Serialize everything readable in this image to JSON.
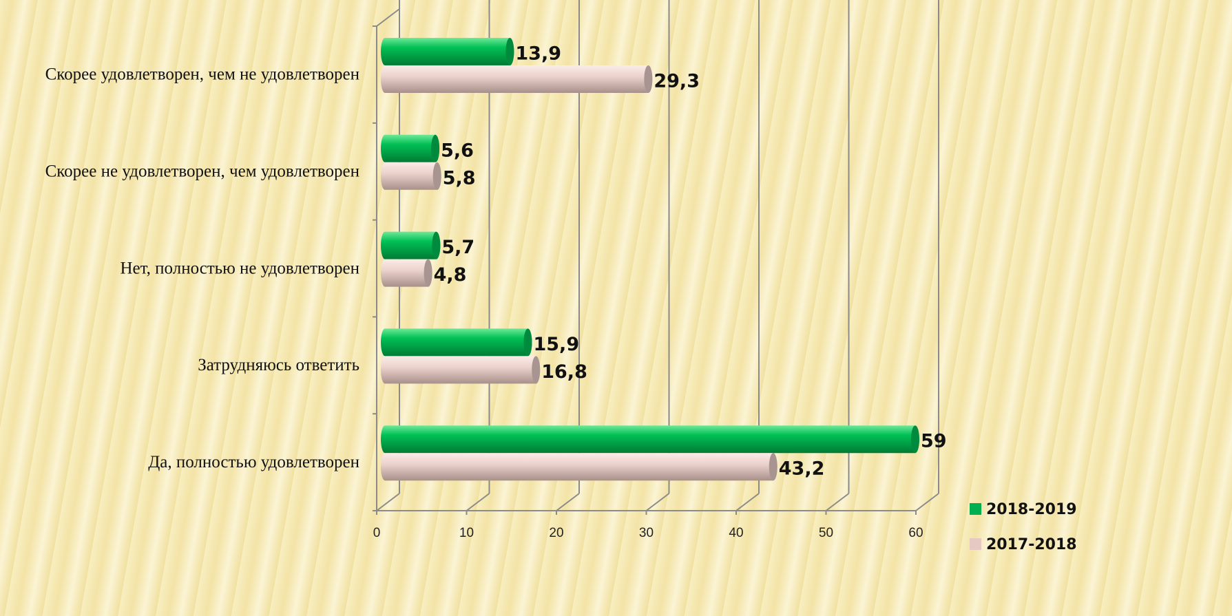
{
  "chart_data": {
    "type": "bar",
    "orientation": "horizontal",
    "categories": [
      "Скорее удовлетворен, чем не удовлетворен",
      "Скорее не удовлетворен, чем удовлетворен",
      "Нет, полностью не удовлетворен",
      "Затрудняюсь ответить",
      "Да, полностью удовлетворен"
    ],
    "series": [
      {
        "name": "2018-2019",
        "color": "#00b050",
        "values": [
          13.9,
          5.6,
          5.7,
          15.9,
          59
        ],
        "value_labels": [
          "13,9",
          "5,6",
          "5,7",
          "15,9",
          "59"
        ]
      },
      {
        "name": "2017-2018",
        "color": "#e6c9c3",
        "values": [
          29.3,
          5.8,
          4.8,
          16.8,
          43.2
        ],
        "value_labels": [
          "29,3",
          "5,8",
          "4,8",
          "16,8",
          "43,2"
        ]
      }
    ],
    "xlim": [
      0,
      60
    ],
    "xticks": [
      0,
      10,
      20,
      30,
      40,
      50,
      60
    ],
    "grid": true,
    "legend": "lower right"
  }
}
